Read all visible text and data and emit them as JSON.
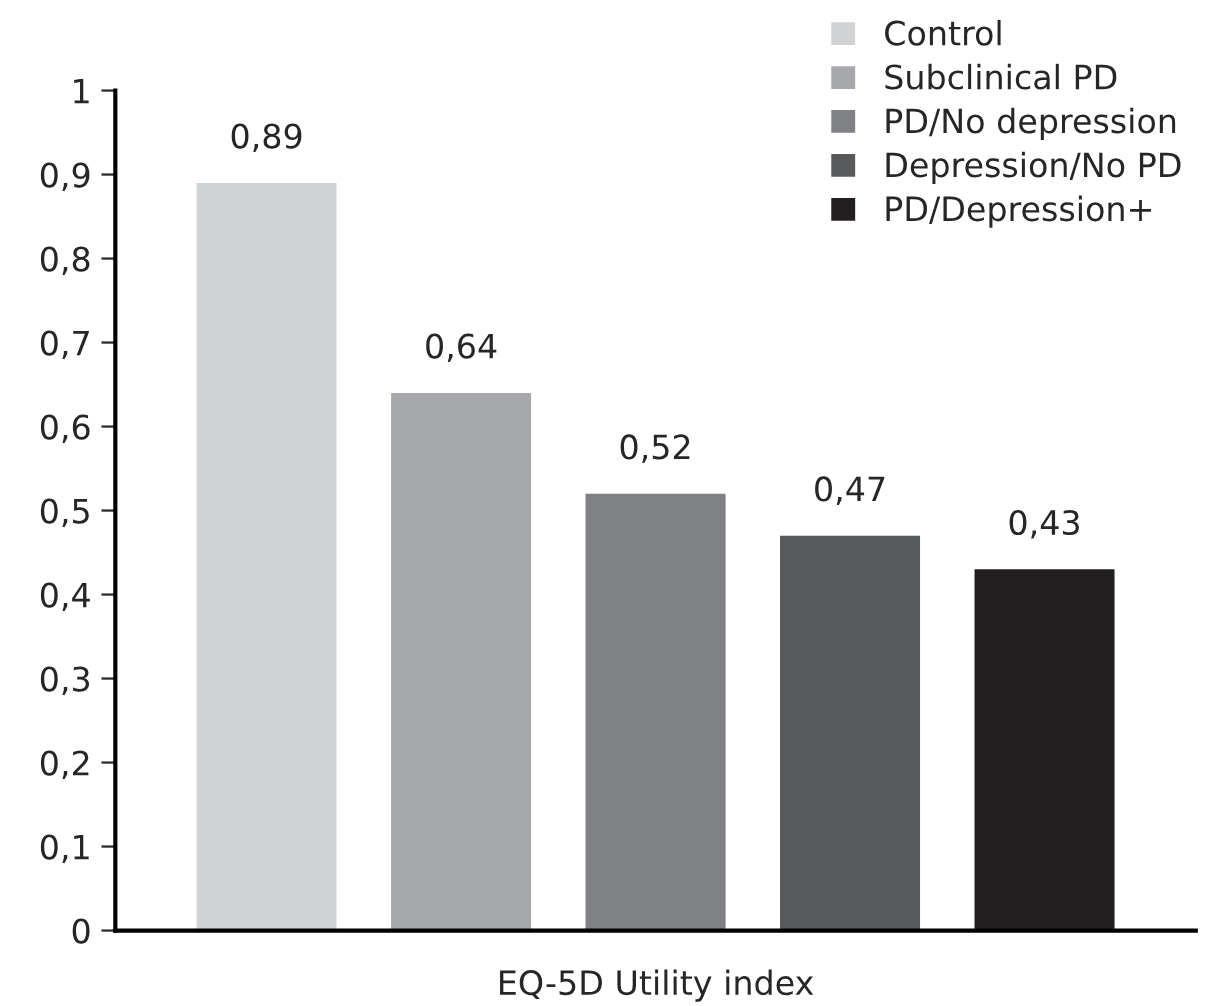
{
  "chart_data": {
    "type": "bar",
    "categories": [
      "EQ-5D Utility index"
    ],
    "series": [
      {
        "name": "Control",
        "color": "#d1d2d4",
        "values": [
          0.89
        ],
        "value_labels": [
          "0,89"
        ]
      },
      {
        "name": "Subclinical PD",
        "color": "#a7a8ab",
        "values": [
          0.64
        ],
        "value_labels": [
          "0,64"
        ]
      },
      {
        "name": "PD/No depression",
        "color": "#808184",
        "values": [
          0.52
        ],
        "value_labels": [
          "0,52"
        ]
      },
      {
        "name": "Depression/No PD",
        "color": "#58595b",
        "values": [
          0.47
        ],
        "value_labels": [
          "0,47"
        ]
      },
      {
        "name": "PD/Depression+",
        "color": "#231f20",
        "values": [
          0.43
        ],
        "value_labels": [
          "0,43"
        ]
      }
    ],
    "ylim": [
      0,
      1
    ],
    "yticks": [
      0,
      {
        "value": 0.1,
        "label": "0,1"
      },
      {
        "value": 0.2,
        "label": "0,2"
      },
      {
        "value": 0.3,
        "label": "0,3"
      },
      {
        "value": 0.4,
        "label": "0,4"
      },
      {
        "value": 0.5,
        "label": "0,5"
      },
      {
        "value": 0.6,
        "label": "0,6"
      },
      {
        "value": 0.7,
        "label": "0,7"
      },
      {
        "value": 0.8,
        "label": "0,8"
      },
      {
        "value": 0.9,
        "label": "0,9"
      },
      1
    ],
    "grid": false,
    "legend": "top right"
  }
}
